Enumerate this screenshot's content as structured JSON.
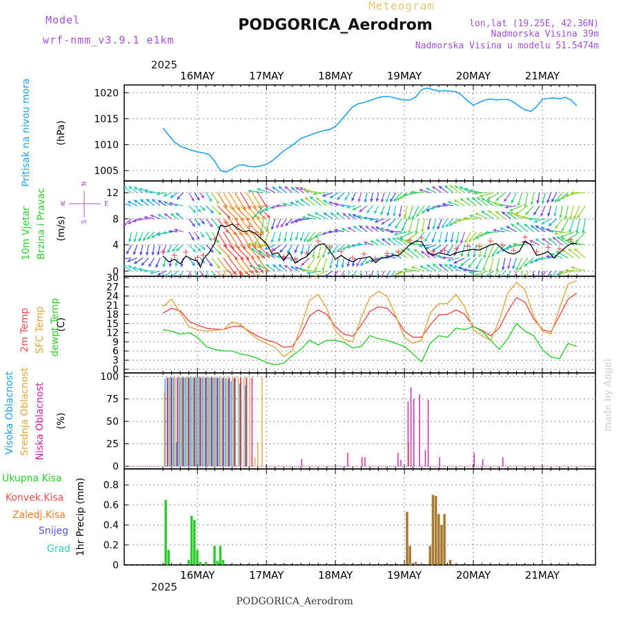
{
  "header": {
    "model_label": "Model",
    "model_name": "wrf-nmm_v3.9.1 e1km",
    "meteogram_label": "Meteogram",
    "station_title": "PODGORICA_Aerodrom",
    "lonlat": "lon,lat (19.25E, 42.36N)",
    "elevation": "Nadmorska Visina 39m",
    "model_elevation": "Nadmorska Visina u modelu 51.5474m",
    "footer_station": "PODGORICA_Aerodrom",
    "watermark": "made by Angel"
  },
  "colors": {
    "pressure": "#1ea0e6",
    "temp2m": "#e84a4a",
    "sfc_temp": "#e0a63c",
    "dewpoint": "#2ccc2c",
    "high_cloud": "#1ea0e6",
    "mid_cloud": "#e0a63c",
    "low_cloud": "#c81ea0",
    "total_precip": "#2ccc2c",
    "conv_precip": "#e84a4a",
    "frozen_precip": "#f07d28",
    "snow": "#5050e6",
    "hail": "#32c8c8",
    "model_purple": "#a050dc",
    "meteogram_gold": "#e6c878"
  },
  "time_axis": {
    "year": "2025",
    "days": [
      "16MAY",
      "17MAY",
      "18MAY",
      "19MAY",
      "20MAY",
      "21MAY"
    ],
    "start_hour": 0,
    "end_hour": 144
  },
  "chart_data": [
    {
      "type": "line",
      "panel": "pressure",
      "ylabel_side": "Pritisak na nivou mora",
      "ylabel": "(hPa)",
      "yticks": [
        1005,
        1010,
        1015,
        1020
      ],
      "ylim": [
        1003,
        1021.5
      ],
      "grid": true,
      "x_unit": "hours from 15MAY 12UTC",
      "series": [
        {
          "name": "Pritisak na nivou mora",
          "x": [
            0,
            2,
            4,
            6,
            8,
            10,
            12,
            14,
            16,
            18,
            20,
            22,
            24,
            26,
            28,
            30,
            32,
            34,
            36,
            38,
            40,
            42,
            44,
            46,
            48,
            50,
            52,
            54,
            56,
            58,
            60,
            62,
            64,
            66,
            68,
            70,
            72,
            74,
            76,
            78,
            80,
            82,
            84,
            86,
            88,
            90,
            92,
            94,
            96,
            98,
            100,
            102,
            104,
            106,
            108,
            110,
            112,
            114,
            116,
            118,
            120,
            122,
            124,
            126,
            128,
            130,
            132,
            134,
            136,
            138,
            140,
            142,
            144
          ],
          "y": [
            1013.2,
            1011.8,
            1010.5,
            1009.7,
            1009.3,
            1008.9,
            1008.6,
            1008.4,
            1008.1,
            1006.8,
            1005.0,
            1004.7,
            1005.3,
            1006.0,
            1006.1,
            1005.8,
            1005.7,
            1005.9,
            1006.2,
            1006.9,
            1007.8,
            1008.8,
            1009.5,
            1010.3,
            1011.2,
            1011.6,
            1012.0,
            1012.4,
            1012.7,
            1012.9,
            1013.5,
            1014.7,
            1016.0,
            1017.3,
            1017.9,
            1018.1,
            1018.5,
            1018.9,
            1019.2,
            1019.3,
            1019.1,
            1018.8,
            1018.6,
            1018.6,
            1019.2,
            1020.6,
            1020.9,
            1020.6,
            1020.3,
            1020.4,
            1020.3,
            1020.2,
            1019.5,
            1018.4,
            1017.6,
            1018.1,
            1018.6,
            1018.8,
            1018.6,
            1018.7,
            1018.7,
            1018.2,
            1017.4,
            1016.7,
            1016.4,
            1017.3,
            1018.7,
            1018.9,
            1019.0,
            1018.8,
            1019.1,
            1018.6,
            1017.5
          ]
        }
      ]
    },
    {
      "type": "line",
      "panel": "wind",
      "ylabel_side": [
        "10m Vjetar",
        "Brzina i Pravac"
      ],
      "ylabel": "(m/s)",
      "compass": {
        "n": "N",
        "s": "S",
        "w": "W",
        "e": "E"
      },
      "yticks": [
        0,
        4,
        8,
        12
      ],
      "ylim": [
        -0.8,
        13.8
      ],
      "grid": true,
      "x_unit": "hours from 15MAY 12UTC",
      "barb_rows_ms": [
        0,
        2,
        4,
        6,
        8,
        10,
        12
      ],
      "series": [
        {
          "name": "10m Vjetar",
          "x": [
            0,
            2,
            4,
            6,
            8,
            10,
            12,
            13,
            14,
            16,
            18,
            20,
            22,
            24,
            26,
            28,
            30,
            32,
            34,
            36,
            38,
            40,
            42,
            44,
            46,
            48,
            50,
            52,
            54,
            56,
            58,
            60,
            62,
            64,
            66,
            68,
            70,
            72,
            74,
            76,
            78,
            80,
            82,
            84,
            86,
            88,
            90,
            92,
            94,
            96,
            98,
            100,
            102,
            104,
            106,
            108,
            110,
            112,
            114,
            116,
            118,
            120,
            122,
            124,
            126,
            128,
            130,
            132,
            134,
            136,
            138,
            140,
            142,
            144
          ],
          "y": [
            2.3,
            1.4,
            1.8,
            1.1,
            2.3,
            1.8,
            1.5,
            0.6,
            1.8,
            2.8,
            4.3,
            7.0,
            6.8,
            7.2,
            6.5,
            6.0,
            6.2,
            5.8,
            5.0,
            4.2,
            2.6,
            2.8,
            1.6,
            2.8,
            1.2,
            1.8,
            2.2,
            3.2,
            4.0,
            4.2,
            3.1,
            1.8,
            2.4,
            1.8,
            1.4,
            1.9,
            2.0,
            2.2,
            1.3,
            2.0,
            2.1,
            2.4,
            2.4,
            3.2,
            4.1,
            4.6,
            4.5,
            3.0,
            2.4,
            2.8,
            2.6,
            2.4,
            2.8,
            3.0,
            3.2,
            3.3,
            3.2,
            3.6,
            4.0,
            4.2,
            3.4,
            2.8,
            2.6,
            3.0,
            4.6,
            4.0,
            2.4,
            2.6,
            3.0,
            2.0,
            2.8,
            3.6,
            4.2,
            4.2
          ]
        }
      ]
    },
    {
      "type": "line",
      "panel": "temperature",
      "ylabel_side": [
        "2m Temp",
        "SFC Temp",
        "dewpt Temp"
      ],
      "ylabel": "(C)",
      "yticks": [
        0,
        3,
        6,
        9,
        12,
        15,
        18,
        21,
        24,
        27,
        30
      ],
      "ylim": [
        -1.2,
        30.5
      ],
      "grid": true,
      "x_unit": "hours from 15MAY 12UTC",
      "series": [
        {
          "name": "2m Temp",
          "x": [
            0,
            3,
            6,
            9,
            12,
            15,
            18,
            21,
            24,
            27,
            30,
            33,
            36,
            39,
            42,
            45,
            48,
            51,
            54,
            57,
            60,
            63,
            66,
            69,
            72,
            75,
            78,
            81,
            84,
            87,
            90,
            93,
            96,
            99,
            102,
            105,
            108,
            111,
            114,
            117,
            120,
            123,
            126,
            129,
            132,
            135,
            138,
            141,
            144
          ],
          "y": [
            18.4,
            20.0,
            19.2,
            15.8,
            14.5,
            13.5,
            13.2,
            13.0,
            14.0,
            14.2,
            12.5,
            10.8,
            9.6,
            8.8,
            7.2,
            7.5,
            11.5,
            17.5,
            19.5,
            18.0,
            14.0,
            11.5,
            10.8,
            14.5,
            19.0,
            20.5,
            20.0,
            17.0,
            12.5,
            10.5,
            10.5,
            14.5,
            17.8,
            18.0,
            19.5,
            18.0,
            14.0,
            12.8,
            11.0,
            13.5,
            19.0,
            23.5,
            22.0,
            16.5,
            13.0,
            12.2,
            17.5,
            23.0,
            25.0
          ]
        },
        {
          "name": "SFC Temp",
          "x": [
            0,
            3,
            6,
            9,
            12,
            15,
            18,
            21,
            24,
            27,
            30,
            33,
            36,
            39,
            42,
            45,
            48,
            51,
            54,
            57,
            60,
            63,
            66,
            69,
            72,
            75,
            78,
            81,
            84,
            87,
            90,
            93,
            96,
            99,
            102,
            105,
            108,
            111,
            114,
            117,
            120,
            123,
            126,
            129,
            132,
            135,
            138,
            141,
            144
          ],
          "y": [
            20.5,
            23.0,
            18.5,
            14.0,
            13.0,
            12.5,
            12.8,
            13.0,
            15.5,
            14.8,
            12.0,
            9.8,
            8.5,
            7.2,
            4.2,
            6.0,
            14.0,
            22.5,
            24.5,
            20.0,
            12.5,
            9.8,
            9.0,
            17.0,
            23.5,
            25.5,
            24.0,
            17.5,
            10.5,
            8.5,
            9.5,
            18.5,
            21.5,
            21.5,
            24.5,
            20.5,
            13.0,
            11.0,
            9.5,
            16.0,
            25.0,
            28.5,
            26.0,
            17.5,
            12.5,
            11.5,
            20.0,
            28.0,
            29.0
          ]
        },
        {
          "name": "dewpt Temp",
          "x": [
            0,
            3,
            6,
            9,
            12,
            15,
            18,
            21,
            24,
            27,
            30,
            33,
            36,
            39,
            42,
            45,
            48,
            51,
            54,
            57,
            60,
            63,
            66,
            69,
            72,
            75,
            78,
            81,
            84,
            87,
            90,
            93,
            96,
            99,
            102,
            105,
            108,
            111,
            114,
            117,
            120,
            123,
            126,
            129,
            132,
            135,
            138,
            141,
            144
          ],
          "y": [
            13.0,
            12.5,
            11.5,
            12.0,
            10.5,
            7.5,
            6.5,
            6.0,
            6.0,
            5.0,
            4.5,
            3.5,
            2.2,
            1.5,
            2.0,
            4.5,
            6.5,
            9.5,
            8.0,
            9.5,
            9.5,
            8.8,
            7.0,
            7.5,
            11.0,
            10.0,
            9.5,
            8.5,
            7.5,
            5.0,
            2.5,
            8.5,
            11.0,
            10.5,
            13.5,
            13.0,
            14.0,
            12.5,
            9.5,
            6.5,
            10.0,
            15.0,
            12.5,
            11.0,
            6.5,
            4.0,
            3.5,
            8.5,
            7.5
          ]
        }
      ]
    },
    {
      "type": "bar",
      "panel": "clouds",
      "ylabel_side": [
        "Visoka Oblacnost",
        "Srednja Oblacnost",
        "Niska Oblacnost"
      ],
      "ylabel": "(%)",
      "yticks": [
        0,
        25,
        50,
        75,
        100
      ],
      "ylim": [
        -3,
        104
      ],
      "grid": true,
      "x_unit": "hours from 15MAY 12UTC",
      "series": [
        {
          "name": "Visoka Oblacnost",
          "x": [
            1,
            2,
            2.5,
            3,
            3.5,
            4,
            4.5,
            5,
            5.5,
            6,
            6.5,
            7,
            7.5,
            8,
            8.5,
            9,
            9.5,
            10,
            10.5,
            11,
            11.5,
            12,
            12.5,
            13,
            13.5,
            14,
            14.5,
            15,
            15.5,
            16,
            16.5,
            17,
            17.5,
            18,
            18.5,
            19,
            20,
            21,
            22,
            23,
            24,
            25,
            27,
            29
          ],
          "y": [
            98,
            99,
            99,
            99,
            27,
            99,
            99,
            27,
            99,
            99,
            99,
            99,
            99,
            99,
            99,
            99,
            99,
            99,
            99,
            99,
            99,
            99,
            99,
            99,
            99,
            99,
            99,
            99,
            99,
            99,
            99,
            99,
            99,
            99,
            99,
            98,
            99,
            98,
            98,
            97,
            95,
            98,
            92,
            90
          ]
        },
        {
          "name": "Srednja Oblacnost",
          "x": [
            0.5,
            1.5,
            2.2,
            3.2,
            4.2,
            5.2,
            6.2,
            7.2,
            8.2,
            9.2,
            10.2,
            11.2,
            12.2,
            13.2,
            14.2,
            15.2,
            16.2,
            17.2,
            18.2,
            19.2,
            20.2,
            21.2,
            22.2,
            23.2,
            24.2,
            25.2,
            26.2,
            27.2,
            28.2,
            29.2,
            30.2,
            31,
            32,
            33,
            34.5,
            85.5
          ],
          "y": [
            83,
            97,
            99,
            99,
            99,
            99,
            99,
            99,
            99,
            99,
            99,
            99,
            99,
            99,
            99,
            99,
            99,
            99,
            99,
            99,
            99,
            99,
            99,
            99,
            99,
            99,
            99,
            99,
            99,
            99,
            98,
            12,
            10,
            27,
            99,
            27
          ]
        },
        {
          "name": "Niska Oblacnost",
          "x": [
            1.2,
            2.7,
            4.7,
            6.7,
            8.7,
            10.7,
            12.7,
            14.7,
            16.7,
            18.7,
            20.7,
            22.7,
            24.7,
            26.7,
            28.7,
            30.7,
            48,
            64,
            69,
            70,
            81.5,
            82.5,
            85,
            86,
            87,
            89,
            91,
            92,
            96,
            108,
            111,
            118
          ],
          "y": [
            99,
            99,
            99,
            99,
            99,
            99,
            99,
            99,
            99,
            99,
            99,
            99,
            99,
            99,
            99,
            99,
            8,
            15,
            10,
            10,
            15,
            7,
            72,
            88,
            75,
            80,
            18,
            74,
            10,
            15,
            8,
            10
          ]
        }
      ]
    },
    {
      "type": "bar",
      "panel": "precipitation",
      "ylabel_side": [
        "Ukupna Kisa",
        "Konvek.Kisa",
        "Zaledj.Kisa",
        "Snijeg",
        "Grad"
      ],
      "ylabel": "1hr Precip (mm)",
      "yticks": [
        0,
        0.2,
        0.4,
        0.6,
        0.8
      ],
      "ylim": [
        0,
        0.96
      ],
      "grid": true,
      "x_unit": "hours from 15MAY 12UTC",
      "series": [
        {
          "name": "Ukupna Kisa",
          "x": [
            1,
            2,
            9,
            10,
            11,
            12,
            13,
            15,
            18,
            19,
            20,
            21
          ],
          "y": [
            0.65,
            0.15,
            0.05,
            0.49,
            0.45,
            0.15,
            0.03,
            0.03,
            0.19,
            0.04,
            0.19,
            0.05
          ]
        },
        {
          "name": "Konvek.Kisa",
          "x": [
            85,
            86,
            88,
            93,
            94,
            95,
            96,
            97,
            98,
            100
          ],
          "y": [
            0.53,
            0.19,
            0.03,
            0.19,
            0.7,
            0.69,
            0.51,
            0.4,
            0.51,
            0.05
          ]
        }
      ]
    }
  ]
}
